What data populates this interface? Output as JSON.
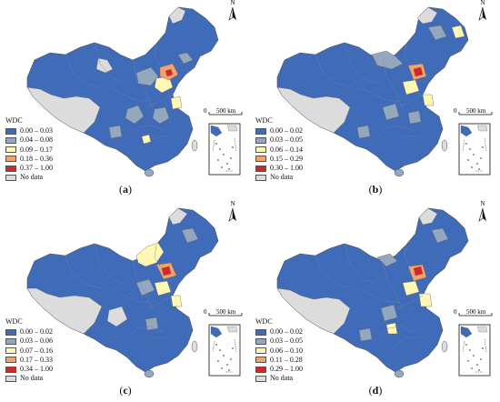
{
  "legend_title": "WDC",
  "colors": {
    "c1": "#3f6bb8",
    "c2": "#93a8bf",
    "c3": "#fff8b4",
    "c4": "#f4a16a",
    "c5": "#d7262a",
    "nodata": "#dcdcdc"
  },
  "scale": {
    "zero": "0",
    "label": "500 km"
  },
  "north_label": "N",
  "panels": [
    {
      "id": "a",
      "caption_open": "(",
      "caption_letter": "a",
      "caption_close": ")",
      "legend": [
        "0.00 – 0.03",
        "0.04 – 0.08",
        "0.09 – 0.17",
        "0.18 – 0.36",
        "0.37 – 1.00",
        "No data"
      ]
    },
    {
      "id": "b",
      "caption_open": "(",
      "caption_letter": "b",
      "caption_close": ")",
      "legend": [
        "0.00 – 0.02",
        "0.03 – 0.05",
        "0.06 – 0.14",
        "0.15 – 0.29",
        "0.30 – 1.00",
        "No data"
      ]
    },
    {
      "id": "c",
      "caption_open": "(",
      "caption_letter": "c",
      "caption_close": ")",
      "legend": [
        "0.00 – 0.02",
        "0.03 – 0.06",
        "0.07 – 0.16",
        "0.17 – 0.33",
        "0.34 – 1.00",
        "No data"
      ]
    },
    {
      "id": "d",
      "caption_open": "(",
      "caption_letter": "d",
      "caption_close": ")",
      "legend": [
        "0.00 – 0.02",
        "0.03 – 0.05",
        "0.06 – 0.10",
        "0.11 – 0.28",
        "0.29 – 1.00",
        "No data"
      ]
    }
  ]
}
